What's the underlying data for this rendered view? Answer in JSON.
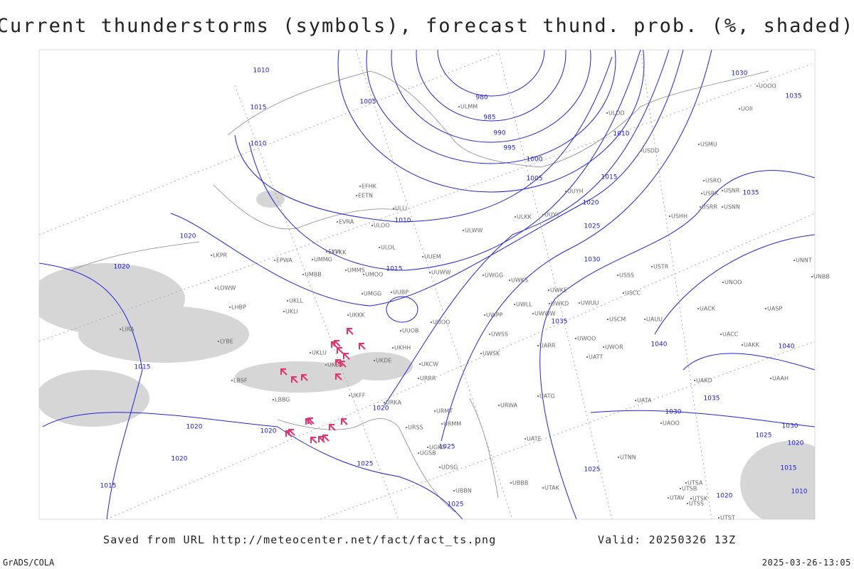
{
  "header": {
    "title": "Current thunderstorms (symbols), forecast thund. prob. (%, shaded)"
  },
  "isobar_labels": [
    "1010",
    "1015",
    "1005",
    "980",
    "985",
    "990",
    "995",
    "1000",
    "1005",
    "1010",
    "1015",
    "1020",
    "1025",
    "1030",
    "1035",
    "1010",
    "1010",
    "1015",
    "1020",
    "1020",
    "1015",
    "1020",
    "1020",
    "1020",
    "1020",
    "1015",
    "1025",
    "1025",
    "1025",
    "1025",
    "1030",
    "1035",
    "1035",
    "1040",
    "1040",
    "1035",
    "1030",
    "1030",
    "1025",
    "1020",
    "1015",
    "1010",
    "1020"
  ],
  "stations": [
    "ULOL",
    "ULLI",
    "EFHK",
    "EETN",
    "EVRA",
    "ULOO",
    "UUEM",
    "UUWW",
    "UMMS",
    "UMOO",
    "UMMG",
    "UMGG",
    "UUBP",
    "UKKK",
    "UUOO",
    "UUOB",
    "UKHH",
    "UKDE",
    "UKBB",
    "UKFF",
    "URKA",
    "URRR",
    "UKCW",
    "UKLL",
    "UKLI",
    "UKLU",
    "LKPR",
    "EPWA",
    "EPKK",
    "UMBB",
    "EYVI",
    "LOWW",
    "LHBP",
    "LIRA",
    "LYBE",
    "LBSF",
    "LBBG",
    "URSS",
    "UGSB",
    "UDSG",
    "URMT",
    "URMM",
    "UATE",
    "UATG",
    "URWA",
    "UWWW",
    "UWKS",
    "UWGG",
    "UWLL",
    "UWPP",
    "UWSS",
    "UWSK",
    "UARR",
    "UWOO",
    "UWUU",
    "UWKE",
    "UWKD",
    "USSS",
    "USCC",
    "USCM",
    "UAUU",
    "USTR",
    "UATT",
    "UWOR",
    "USHH",
    "USRR",
    "USRK",
    "USRO",
    "USNR",
    "USNN",
    "USMU",
    "ULDD",
    "USDD",
    "UUYY",
    "ULKK",
    "UUYH",
    "ULWW",
    "UNNT",
    "UNBB",
    "UNOO",
    "UACC",
    "UAKK",
    "UASP",
    "UACK",
    "UAKD",
    "UAAH",
    "UATA",
    "UAOO",
    "UOOO",
    "UOII",
    "ULMM",
    "UTSA",
    "UTSB",
    "UTAV",
    "UTSS",
    "UTSK",
    "UTST",
    "UTNN",
    "UTAK",
    "UBBB",
    "UBBN",
    "UGKO"
  ],
  "footer": {
    "source": "Saved from URL http://meteocenter.net/fact/fact_ts.png",
    "valid": "Valid: 20250326 13Z",
    "credit": "GrADS/COLA",
    "timestamp": "2025-03-26-13:05"
  }
}
